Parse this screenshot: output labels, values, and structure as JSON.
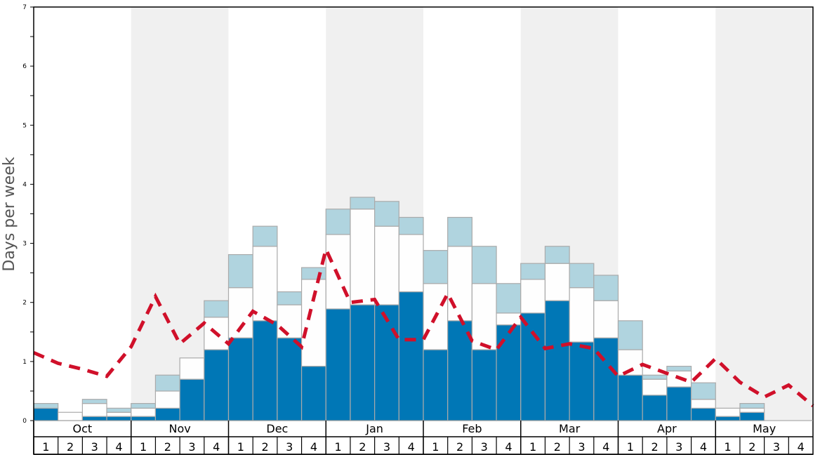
{
  "chart_data": {
    "type": "bar",
    "stacked": true,
    "title": "",
    "xlabel": "",
    "ylabel": "Days per week",
    "ylim": [
      0,
      7
    ],
    "yticks": [
      "0",
      "1",
      "2",
      "3",
      "4",
      "5",
      "6",
      "7"
    ],
    "months": [
      "Oct",
      "Nov",
      "Dec",
      "Jan",
      "Feb",
      "Mar",
      "Apr",
      "May"
    ],
    "weeks": [
      "1",
      "2",
      "3",
      "4"
    ],
    "colors": {
      "lower": "#0077b6",
      "middle": "#fefefe",
      "upper": "#b0d4df",
      "line": "#d0102a",
      "shade": "#f0f0f0",
      "edge": "#aaaaaa"
    },
    "series": [
      {
        "id": "lower",
        "values": [
          0.21,
          0,
          0.07,
          0.07,
          0.07,
          0.21,
          0.7,
          1.2,
          1.4,
          1.69,
          1.4,
          0.92,
          1.89,
          1.96,
          1.96,
          2.18,
          1.2,
          1.69,
          1.2,
          1.62,
          1.82,
          2.03,
          1.33,
          1.4,
          0.77,
          0.43,
          0.57,
          0.21,
          0.07,
          0.14,
          0,
          0
        ]
      },
      {
        "id": "middle",
        "values": [
          0,
          0.14,
          0.22,
          0.07,
          0.14,
          0.29,
          0.36,
          0.55,
          0.85,
          1.26,
          0.56,
          1.47,
          1.26,
          1.62,
          1.33,
          0.97,
          1.12,
          1.26,
          1.12,
          0.2,
          0.57,
          0.63,
          0.92,
          0.63,
          0.43,
          0.27,
          0.27,
          0.15,
          0.14,
          0.07,
          0,
          0
        ]
      },
      {
        "id": "upper",
        "values": [
          0.08,
          0,
          0.07,
          0.07,
          0.08,
          0.27,
          0,
          0.28,
          0.56,
          0.34,
          0.22,
          0.2,
          0.43,
          0.2,
          0.42,
          0.29,
          0.56,
          0.49,
          0.63,
          0.5,
          0.27,
          0.29,
          0.41,
          0.43,
          0.49,
          0.07,
          0.08,
          0.28,
          0,
          0.08,
          0,
          0
        ]
      }
    ],
    "line": {
      "style": "dashed",
      "values": [
        1.15,
        0.97,
        0.87,
        0.75,
        1.25,
        2.1,
        1.3,
        1.65,
        1.3,
        1.85,
        1.62,
        1.25,
        2.9,
        2.0,
        2.05,
        1.37,
        1.37,
        2.15,
        1.35,
        1.2,
        1.75,
        1.22,
        1.3,
        1.22,
        0.75,
        0.95,
        0.8,
        0.65,
        1.05,
        0.65,
        0.4,
        0.6,
        0.25
      ]
    },
    "grid": false
  }
}
